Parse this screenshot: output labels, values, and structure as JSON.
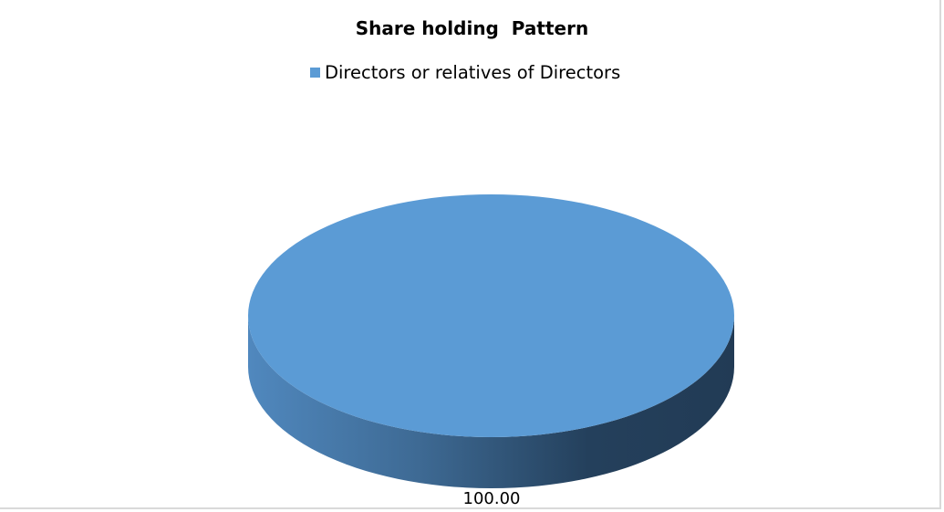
{
  "chart_data": {
    "type": "pie",
    "style": "3d",
    "title": "Share holding  Pattern",
    "legend_position": "top",
    "slices": [
      {
        "label": "Directors or relatives of Directors",
        "value": 100.0,
        "data_label": "100.00",
        "color": "#5b9bd5"
      }
    ]
  }
}
